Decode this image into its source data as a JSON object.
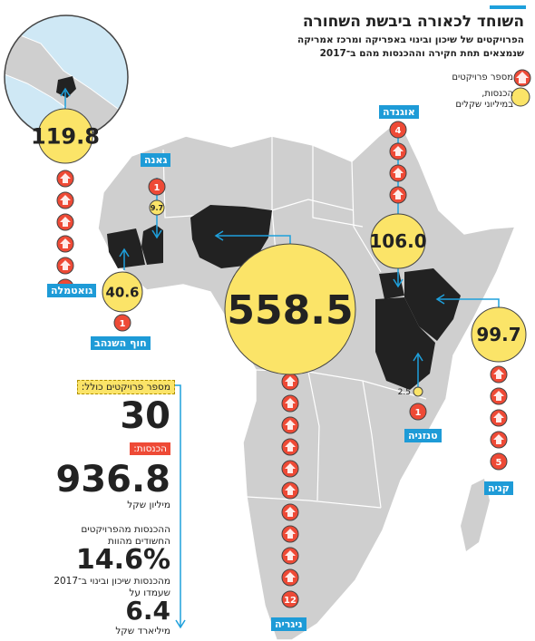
{
  "header": {
    "title": "השוחד לכאורה ביבשת השחורה",
    "subtitle_line1": "הפרויקטים של שיכון ובינוי באפריקה ומרכז אמריקה",
    "subtitle_line2": "שנמצאים תחת חקירה וההכנסות מהם ב־2017"
  },
  "legend": {
    "projects": "מספר פרויקטים",
    "revenue_line1": "הכנסות,",
    "revenue_line2": "במיליוני שקלים"
  },
  "countries": [
    {
      "name": "גואטמלה",
      "revenue": "119.8",
      "projects": "6"
    },
    {
      "name": "גאנה",
      "revenue": "9.7",
      "projects": "1"
    },
    {
      "name": "חוף השנהב",
      "revenue": "40.6",
      "projects": "1"
    },
    {
      "name": "ניגריה",
      "revenue": "558.5",
      "projects": "12"
    },
    {
      "name": "אוגנדה",
      "revenue": "106.0",
      "projects": "4"
    },
    {
      "name": "טנזניה",
      "revenue": "2.5",
      "projects": "1"
    },
    {
      "name": "קניה",
      "revenue": "99.7",
      "projects": "5"
    }
  ],
  "stats": {
    "total_projects_label": "מספר פרויקטים כולל:",
    "total_projects_value": "30",
    "revenue_label": "הכנסות:",
    "revenue_value": "936.8",
    "revenue_unit": "מיליון שקל",
    "share_line1": "ההכנסות מהפרויקטים",
    "share_line2": "החשודים מהוות",
    "share_value": "14.6%",
    "share_line3": "מהכנסות שיכון ובינוי ב־2017",
    "share_line4": "שעמדו על",
    "total_value": "6.4",
    "total_unit": "מיליארד שקל"
  },
  "colors": {
    "accent": "#1ea0dc",
    "bubble": "#fbe468",
    "project_marker": "#ee4a36",
    "highlight_country": "#222222",
    "land": "#cfcfcf",
    "sea": "#cfe8f5"
  }
}
